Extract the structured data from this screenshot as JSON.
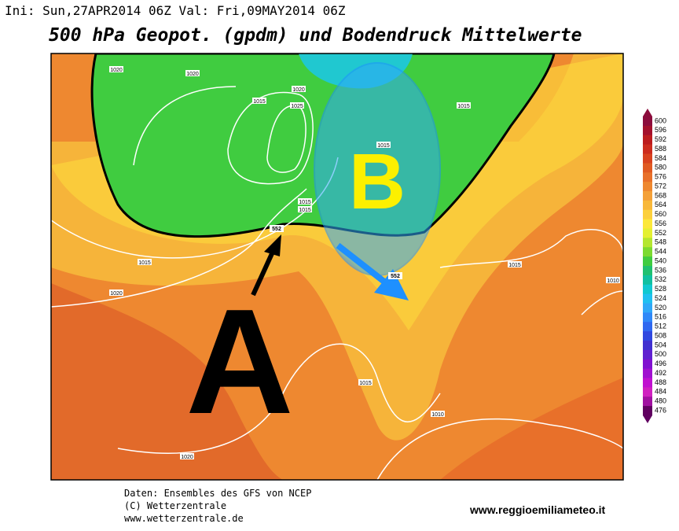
{
  "header": {
    "init": "Ini: Sun,27APR2014 06Z Val: Fri,09MAY2014 06Z",
    "title": "500 hPa Geopot. (gpdm) und Bodendruck Mittelwerte"
  },
  "map": {
    "high_letter": "A",
    "low_letter": "B",
    "isobar_labels": [
      "1020",
      "1020",
      "1020",
      "1025",
      "1015",
      "1015",
      "1015",
      "1015",
      "1015",
      "1020",
      "1015",
      "1015",
      "1010",
      "1010",
      "1020",
      "1015"
    ],
    "contour_labels": [
      "552",
      "552"
    ]
  },
  "colorbar": {
    "labels": [
      600,
      596,
      592,
      588,
      584,
      580,
      576,
      572,
      568,
      564,
      560,
      556,
      552,
      548,
      544,
      540,
      536,
      532,
      528,
      524,
      520,
      516,
      512,
      508,
      504,
      500,
      496,
      492,
      488,
      484,
      480,
      476
    ],
    "colors": [
      "#8c0c3c",
      "#a4102c",
      "#bc1c1e",
      "#cc2c1e",
      "#d8421f",
      "#e05a22",
      "#e8702a",
      "#ee8830",
      "#f4a038",
      "#f8b83a",
      "#fcd03c",
      "#fce83a",
      "#e4f032",
      "#b4e630",
      "#7cda30",
      "#40cc40",
      "#20c070",
      "#10c0a0",
      "#10c8d0",
      "#20c0f0",
      "#30a8f8",
      "#3088f8",
      "#3068f0",
      "#3048e0",
      "#4030d0",
      "#6020d0",
      "#8010d0",
      "#a010d0",
      "#c010d0",
      "#d020c0",
      "#a010a0",
      "#600060"
    ]
  },
  "footer": {
    "lines": [
      "Daten: Ensembles des GFS von NCEP",
      "(C) Wetterzentrale",
      "www.wetterzentrale.de"
    ],
    "website": "www.reggioemiliameteo.it"
  }
}
